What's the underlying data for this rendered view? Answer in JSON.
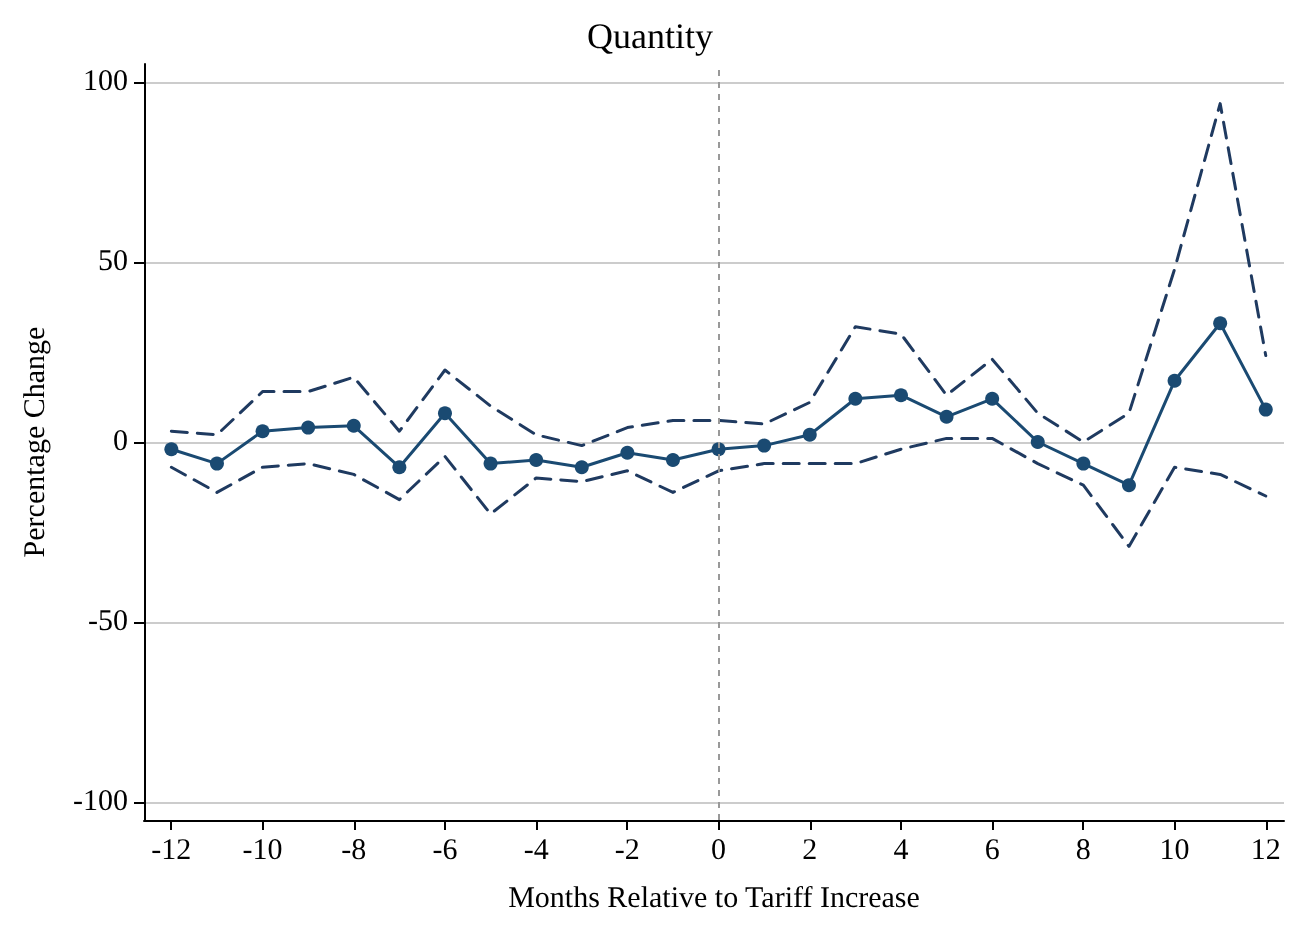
{
  "chart_data": {
    "type": "line",
    "title": "Quantity",
    "xlabel": "Months Relative to Tariff Increase",
    "ylabel": "Percentage Change",
    "x": [
      -12,
      -11,
      -10,
      -9,
      -8,
      -7,
      -6,
      -5,
      -4,
      -3,
      -2,
      -1,
      0,
      1,
      2,
      3,
      4,
      5,
      6,
      7,
      8,
      9,
      10,
      11,
      12
    ],
    "series": [
      {
        "color": "#1f3a60",
        "line_style": "dashed",
        "marker": "none",
        "values": [
          3,
          2,
          14,
          14,
          18,
          3,
          20,
          10,
          2,
          -1,
          4,
          6,
          6,
          5,
          11,
          32,
          30,
          13,
          23,
          8,
          0,
          8,
          48,
          94,
          24
        ]
      },
      {
        "color": "#1a4a72",
        "line_style": "solid",
        "marker": "circle",
        "values": [
          -2,
          -6,
          3,
          4,
          4.5,
          -7,
          8,
          -6,
          -5,
          -7,
          -3,
          -5,
          -2,
          -1,
          2,
          12,
          13,
          7,
          12,
          0,
          -6,
          -12,
          17,
          33,
          9
        ]
      },
      {
        "color": "#1f3a60",
        "line_style": "dashed",
        "marker": "none",
        "values": [
          -7,
          -14,
          -7,
          -6,
          -9,
          -16,
          -4,
          -20,
          -10,
          -11,
          -8,
          -14,
          -8,
          -6,
          -6,
          -6,
          -2,
          1,
          1,
          -6,
          -12,
          -29,
          -7,
          -9,
          -15
        ]
      }
    ],
    "xlim": [
      -12.6,
      12.4
    ],
    "xticks": [
      -12,
      -10,
      -8,
      -6,
      -4,
      -2,
      0,
      2,
      4,
      6,
      8,
      10,
      12
    ],
    "ylim": [
      -105,
      105
    ],
    "yticks": [
      -100,
      -50,
      0,
      50,
      100
    ],
    "grid": "y",
    "ref_lines": [
      {
        "axis": "x",
        "value": 0,
        "color": "#999999",
        "line_style": "dotted"
      }
    ]
  }
}
